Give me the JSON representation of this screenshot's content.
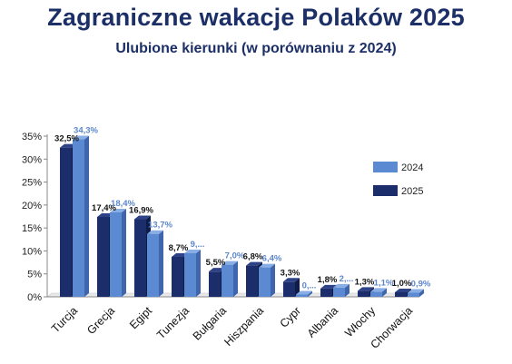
{
  "title": "Zagraniczne wakacje Polaków 2025",
  "subtitle": "Ulubione kierunki (w porównaniu z 2024)",
  "colors": {
    "s2025_front": "#1b2d6b",
    "s2025_side": "#0f1c47",
    "s2025_top": "#2e4287",
    "s2024_front": "#5c8ad2",
    "s2024_side": "#3f66ad",
    "s2024_top": "#89aee6",
    "label2025": "#141414",
    "label2024": "#5c86cc",
    "axis": "#8a8a8a"
  },
  "chart_data": {
    "type": "bar",
    "categories": [
      "Turcja",
      "Grecja",
      "Egipt",
      "Tunezja",
      "Bułgaria",
      "Hiszpania",
      "Cypr",
      "Albania",
      "Włochy",
      "Chorwacja"
    ],
    "series": [
      {
        "name": "2025",
        "values": [
          32.5,
          17.4,
          16.9,
          8.7,
          5.5,
          6.8,
          3.3,
          1.8,
          1.3,
          1.0
        ],
        "labels": [
          "32,5%",
          "17,4%",
          "16,9%",
          "8,7%",
          "5,5%",
          "6,8%",
          "3,3%",
          "1,8%",
          "1,3%",
          "1,0%"
        ]
      },
      {
        "name": "2024",
        "values": [
          34.3,
          18.4,
          13.7,
          9.5,
          7.0,
          6.4,
          0.5,
          2.0,
          1.1,
          0.9
        ],
        "labels": [
          "34,3%",
          "18,4%",
          "13,7%",
          "9,...",
          "7,0%",
          "6,4%",
          "0,...",
          "2,...",
          "1,1%",
          "0,9%"
        ]
      }
    ],
    "ylim": [
      0,
      35
    ],
    "yticks": [
      "0%",
      "5%",
      "10%",
      "15%",
      "20%",
      "25%",
      "30%",
      "35%"
    ],
    "legend": [
      "2024",
      "2025"
    ],
    "legend_position": "right",
    "grid": false
  }
}
